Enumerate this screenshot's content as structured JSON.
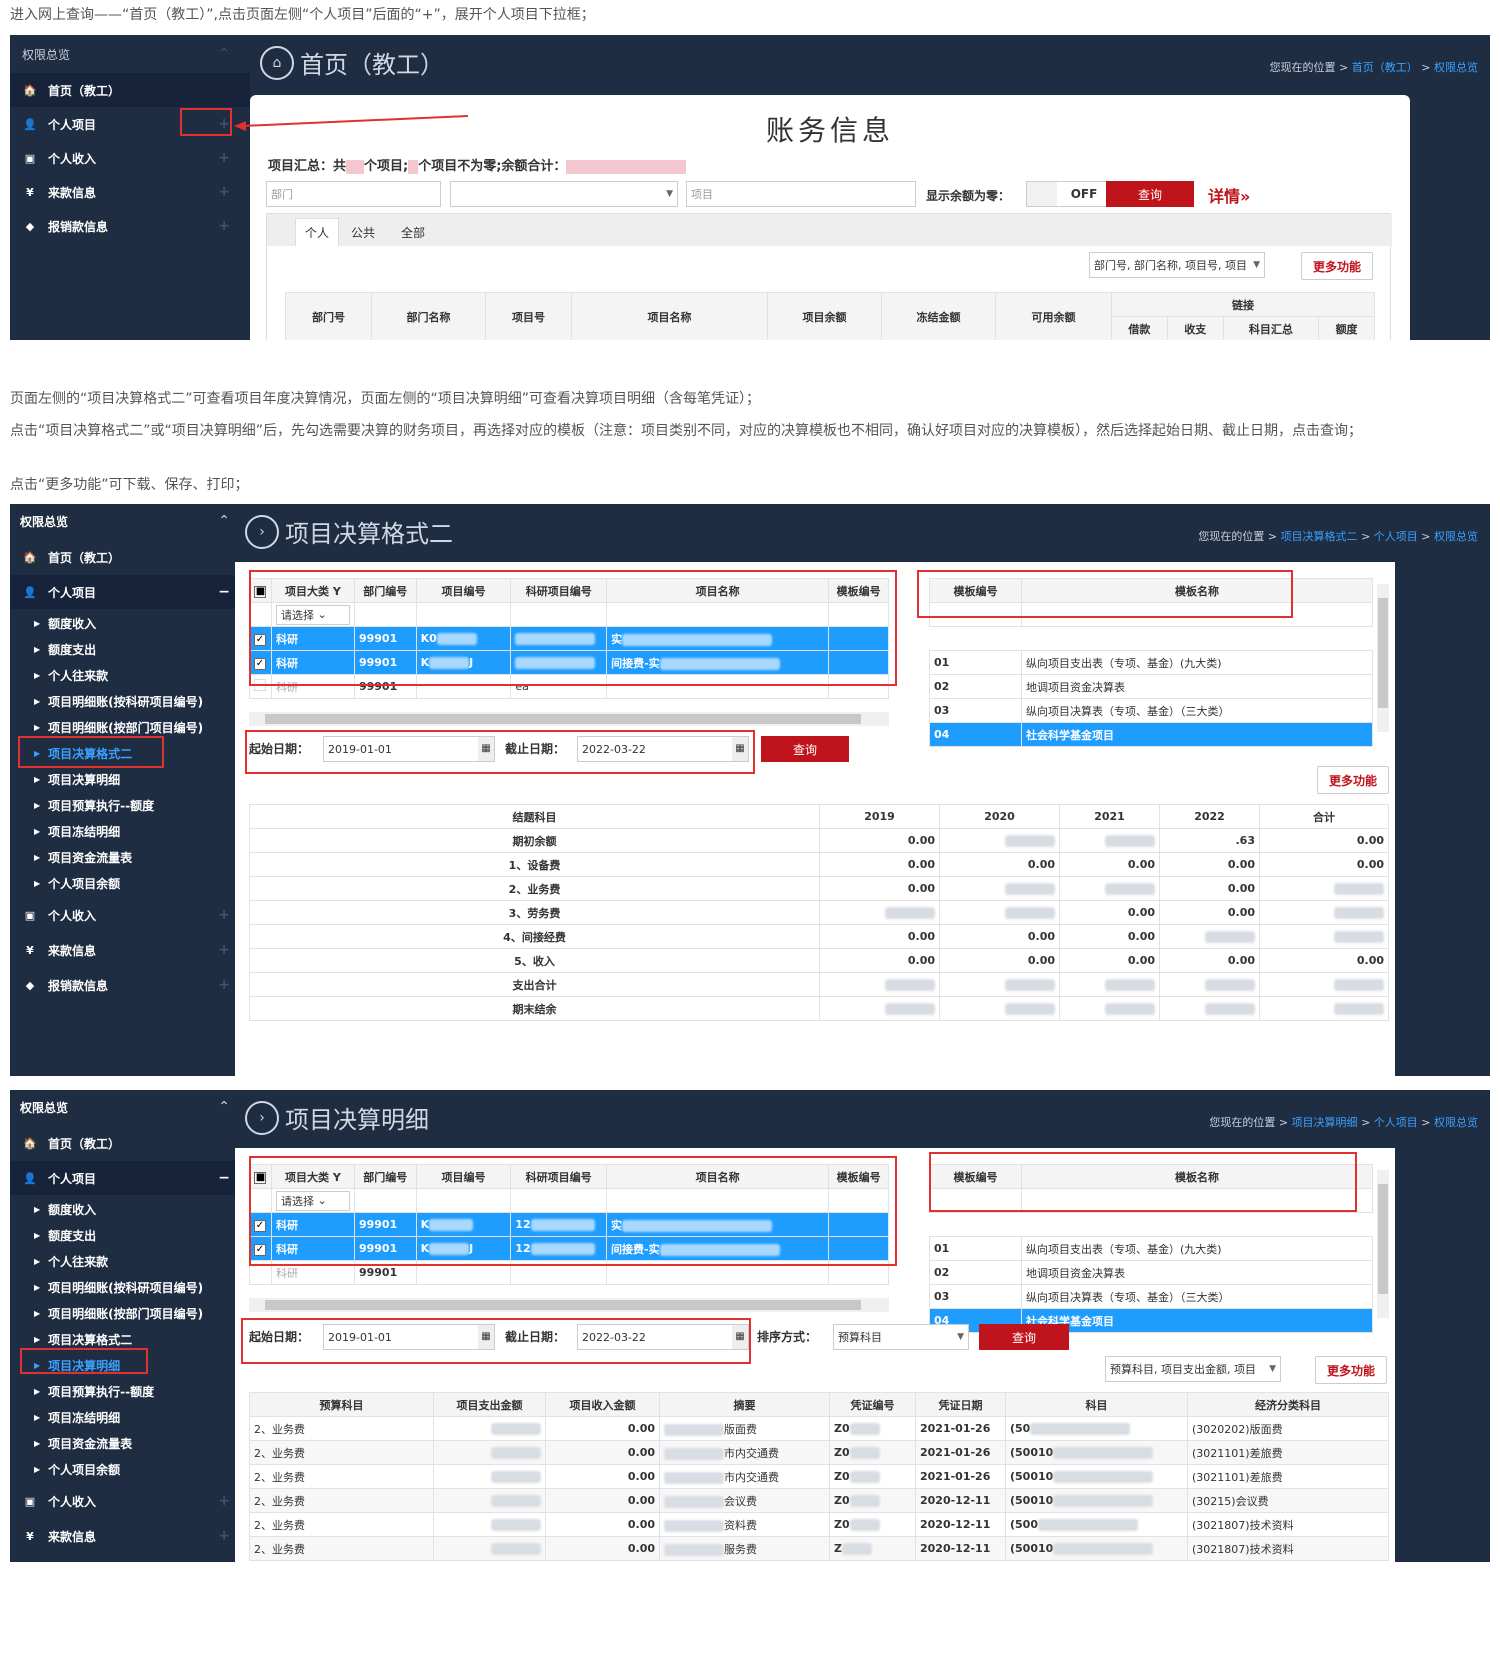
{
  "para1": "进入网上查询——“首页（教工）”,点击页面左侧“个人项目”后面的“+”，展开个人项目下拉框；",
  "para2": "页面左侧的“项目决算格式二”可查看项目年度决算情况，页面左侧的“项目决算明细”可查看决算项目明细（含每笔凭证）；",
  "para3": "点击“项目决算格式二”或“项目决算明细”后，先勾选需要决算的财务项目，再选择对应的模板（注意：项目类别不同，对应的决算模板也不相同，确认好项目对应的决算模板），然后选择起始日期、截止日期，点击查询；",
  "para4": "点击“更多功能”可下载、保存、打印；",
  "common": {
    "sb_overview": "权限总览",
    "sb_home": "首页（教工）",
    "sb_personal": "个人项目",
    "sb_income": "个人收入",
    "sb_funds": "来款信息",
    "sb_reimb": "报销款信息",
    "plus": "+",
    "minus": "−",
    "crumb_prefix": "您现在的位置",
    "crumb_sep": ">",
    "crumb_personal": "个人项目",
    "crumb_overview": "权限总览",
    "more": "更多功能",
    "query": "查询"
  },
  "s1": {
    "title": "首页（教工）",
    "crumb_home": "首页（教工）",
    "heading": "账务信息",
    "summary_a": "项目汇总：共",
    "summary_b": "个项目;",
    "summary_c": "个项目不为零;余额合计：",
    "dept_ph": "部门",
    "proj_ph": "项目",
    "show_zero": "显示余额为零：",
    "off": "OFF",
    "detail": "详情»",
    "tabs": [
      "个人",
      "公共",
      "全部"
    ],
    "col_select": "部门号, 部门名称, 项目号, 项目",
    "headers": [
      "部门号",
      "部门名称",
      "项目号",
      "项目名称",
      "项目余额",
      "冻结金额",
      "可用余额"
    ],
    "link_group": "链接",
    "link_cols": [
      "借款",
      "收支",
      "科目汇总",
      "额度"
    ]
  },
  "sub_items": [
    "额度收入",
    "额度支出",
    "个人往来款",
    "项目明细账(按科研项目编号)",
    "项目明细账(按部门项目编号)",
    "项目决算格式二",
    "项目决算明细",
    "项目预算执行--额度",
    "项目冻结明细",
    "项目资金流量表",
    "个人项目余额"
  ],
  "proj_table": {
    "headers": [
      "项目大类",
      "部门编号",
      "项目编号",
      "科研项目编号",
      "项目名称",
      "模板编号"
    ],
    "select_ph": "请选择",
    "rows": [
      {
        "type": "科研",
        "dept": "99901",
        "code": "K0",
        "name": "实"
      },
      {
        "type": "科研",
        "dept": "99901",
        "code": "K",
        "code_tail": "J",
        "name": "间接费-实"
      },
      {
        "type": "科研",
        "dept": "99901",
        "code": "",
        "rcode": "ea",
        "name": ""
      }
    ],
    "rcode_prefix": "12"
  },
  "tmpl_table": {
    "headers": [
      "模板编号",
      "模板名称"
    ],
    "rows": [
      {
        "no": "01",
        "name": "纵向项目支出表（专项、基金）(九大类)"
      },
      {
        "no": "02",
        "name": "地调项目资金决算表"
      },
      {
        "no": "03",
        "name": "纵向项目决算表（专项、基金）（三大类）"
      },
      {
        "no": "04",
        "name": "社会科学基金项目"
      }
    ]
  },
  "dates": {
    "start_label": "起始日期：",
    "start": "2019-01-01",
    "end_label": "截止日期：",
    "end": "2022-03-22"
  },
  "s2": {
    "title": "项目决算格式二",
    "crumb_page": "项目决算格式二",
    "headers": [
      "结题科目",
      "2019",
      "2020",
      "2021",
      "2022",
      "合计"
    ],
    "rows": [
      {
        "label": "期初余额",
        "v": [
          "0.00",
          "~0",
          "~",
          ".63",
          "0.00"
        ]
      },
      {
        "label": "1、设备费",
        "v": [
          "0.00",
          "0.00",
          "0.00",
          "0.00",
          "0.00"
        ]
      },
      {
        "label": "2、业务费",
        "v": [
          "0.00",
          "~",
          "~",
          "0.00",
          "~"
        ]
      },
      {
        "label": "3、劳务费",
        "v": [
          "~.00",
          "~",
          "0.00",
          "0.00",
          "~"
        ]
      },
      {
        "label": "4、间接经费",
        "v": [
          "0.00",
          "0.00",
          "0.00",
          "~",
          "~"
        ]
      },
      {
        "label": "5、收入",
        "v": [
          "0.00",
          "0.00",
          "0.00",
          "0.00",
          "0.00"
        ]
      },
      {
        "label": "支出合计",
        "v": [
          "~",
          "~",
          "~",
          "~",
          "~"
        ]
      },
      {
        "label": "期末结余",
        "v": [
          "~",
          "~",
          "~",
          "~",
          "~"
        ]
      }
    ]
  },
  "s3": {
    "title": "项目决算明细",
    "crumb_page": "项目决算明细",
    "sort_label": "排序方式：",
    "sort_value": "预算科目",
    "col_select": "预算科目, 项目支出金额, 项目",
    "headers": [
      "预算科目",
      "项目支出金额",
      "项目收入金额",
      "摘要",
      "凭证编号",
      "凭证日期",
      "科目",
      "经济分类科目"
    ],
    "rows": [
      {
        "subj": "2、业务费",
        "inc": "0.00",
        "memo": "版面费",
        "vno": "Z0",
        "date": "2021-01-26",
        "acct": "(50",
        "econ": "(3020202)版面费"
      },
      {
        "subj": "2、业务费",
        "inc": "0.00",
        "memo": "市内交通费",
        "vno": "Z0",
        "date": "2021-01-26",
        "acct": "(50010",
        "econ": "(3021101)差旅费"
      },
      {
        "subj": "2、业务费",
        "inc": "0.00",
        "memo": "市内交通费",
        "vno": "Z0",
        "date": "2021-01-26",
        "acct": "(50010",
        "econ": "(3021101)差旅费"
      },
      {
        "subj": "2、业务费",
        "inc": "0.00",
        "memo": "会议费",
        "vno": "Z0",
        "date": "2020-12-11",
        "acct": "(50010",
        "econ": "(30215)会议费"
      },
      {
        "subj": "2、业务费",
        "inc": "0.00",
        "memo": "资料费",
        "vno": "Z0",
        "date": "2020-12-11",
        "acct": "(500",
        "econ": "(3021807)技术资料"
      },
      {
        "subj": "2、业务费",
        "inc": "0.00",
        "memo": "服务费",
        "vno": "Z",
        "date": "2020-12-11",
        "acct": "(50010",
        "econ": "(3021807)技术资料"
      }
    ]
  }
}
